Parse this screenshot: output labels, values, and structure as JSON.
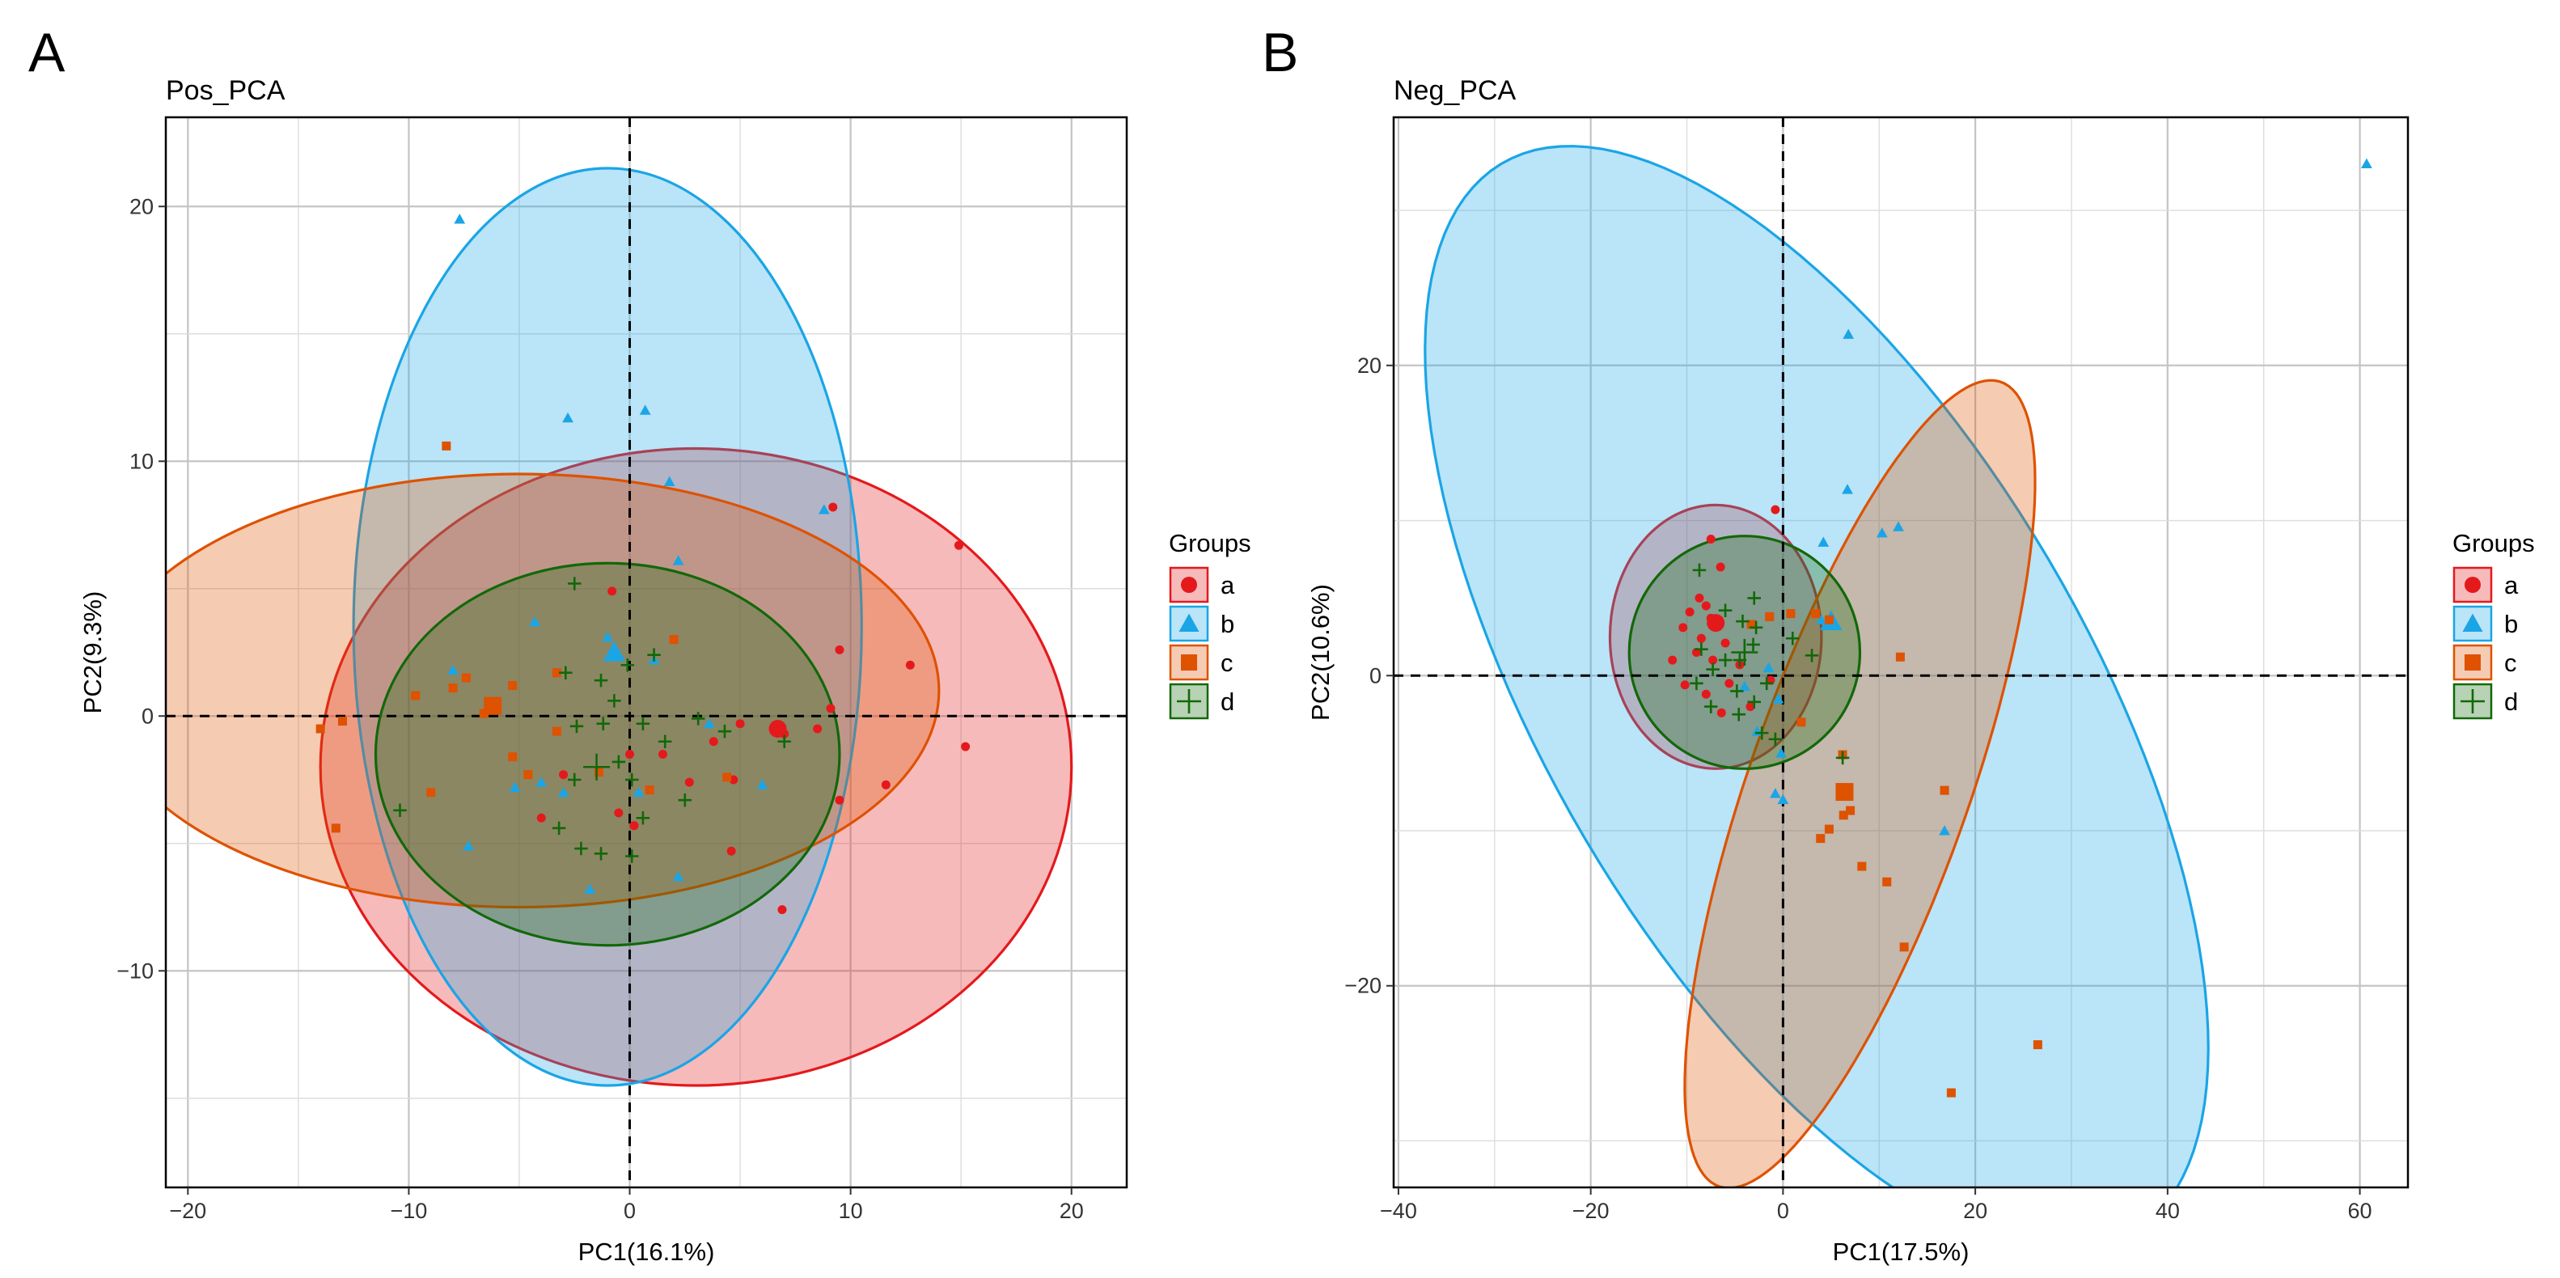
{
  "chart_data": [
    {
      "type": "scatter",
      "panel_letter": "A",
      "title": "Pos_PCA",
      "xlabel": "PC1(16.1%)",
      "ylabel": "PC2(9.3%)",
      "xlim": [
        -21,
        22.5
      ],
      "ylim": [
        -18.5,
        23.5
      ],
      "xticks": [
        -20,
        -10,
        0,
        10,
        20
      ],
      "yticks": [
        -10,
        0,
        10,
        20
      ],
      "grid": true,
      "legend": {
        "title": "Groups",
        "position": "right",
        "entries": [
          "a",
          "b",
          "c",
          "d"
        ]
      },
      "groups": [
        {
          "name": "a",
          "color": "#e4191c",
          "marker": "circle",
          "ellipse": {
            "cx": 3,
            "cy": -2,
            "rx": 17,
            "ry": 12.5,
            "angle": 0
          },
          "centroid": [
            6.7,
            -0.5
          ],
          "points": [
            [
              9.2,
              8.2
            ],
            [
              14.9,
              6.7
            ],
            [
              9.5,
              2.6
            ],
            [
              12.7,
              2.0
            ],
            [
              15.2,
              -1.2
            ],
            [
              9.1,
              0.3
            ],
            [
              8.5,
              -0.5
            ],
            [
              11.6,
              -2.7
            ],
            [
              9.5,
              -3.3
            ],
            [
              7.0,
              -0.7
            ],
            [
              5.0,
              -0.3
            ],
            [
              4.7,
              -2.5
            ],
            [
              3.8,
              -1.0
            ],
            [
              2.7,
              -2.6
            ],
            [
              1.5,
              -1.5
            ],
            [
              0.0,
              -1.5
            ],
            [
              -0.5,
              -3.8
            ],
            [
              -4.0,
              -4.0
            ],
            [
              -3.0,
              -2.3
            ],
            [
              6.9,
              -7.6
            ],
            [
              4.6,
              -5.3
            ],
            [
              0.2,
              -4.3
            ],
            [
              -0.8,
              4.9
            ]
          ]
        },
        {
          "name": "b",
          "color": "#1aa5e6",
          "marker": "triangle",
          "ellipse": {
            "cx": -1,
            "cy": 3.5,
            "rx": 11.5,
            "ry": 18,
            "angle": 0
          },
          "centroid": [
            -0.7,
            2.5
          ],
          "points": [
            [
              -7.7,
              19.5
            ],
            [
              0.7,
              12.0
            ],
            [
              -2.8,
              11.7
            ],
            [
              1.8,
              9.2
            ],
            [
              8.8,
              8.1
            ],
            [
              2.2,
              6.1
            ],
            [
              -4.3,
              3.7
            ],
            [
              -1.0,
              3.1
            ],
            [
              1.1,
              2.2
            ],
            [
              3.6,
              -0.3
            ],
            [
              -4.0,
              -2.6
            ],
            [
              -5.2,
              -2.8
            ],
            [
              6.0,
              -2.7
            ],
            [
              -3.0,
              -3.0
            ],
            [
              -7.3,
              -5.1
            ],
            [
              2.2,
              -6.3
            ],
            [
              -1.8,
              -6.8
            ],
            [
              -8.0,
              1.8
            ],
            [
              0.4,
              -3.0
            ]
          ]
        },
        {
          "name": "c",
          "color": "#de5200",
          "marker": "square",
          "ellipse": {
            "cx": -5,
            "cy": 1,
            "rx": 19,
            "ry": 8.5,
            "angle": 0
          },
          "centroid": [
            -6.2,
            0.4
          ],
          "points": [
            [
              -8.3,
              10.6
            ],
            [
              2.0,
              3.0
            ],
            [
              -5.3,
              1.2
            ],
            [
              -7.4,
              1.5
            ],
            [
              -8.0,
              1.1
            ],
            [
              -3.3,
              1.7
            ],
            [
              -9.7,
              0.8
            ],
            [
              -6.6,
              0.1
            ],
            [
              -13.0,
              -0.2
            ],
            [
              -14.0,
              -0.5
            ],
            [
              -5.3,
              -1.6
            ],
            [
              -4.6,
              -2.3
            ],
            [
              -13.3,
              -4.4
            ],
            [
              -9.0,
              -3.0
            ],
            [
              -1.4,
              -2.2
            ],
            [
              -3.3,
              -0.6
            ],
            [
              4.4,
              -2.4
            ],
            [
              0.9,
              -2.9
            ]
          ]
        },
        {
          "name": "d",
          "color": "#126808",
          "marker": "plus",
          "ellipse": {
            "cx": -1,
            "cy": -1.5,
            "rx": 10.5,
            "ry": 7.5,
            "angle": 0
          },
          "centroid": [
            -1.5,
            -2.0
          ],
          "points": [
            [
              -10.4,
              -3.7
            ],
            [
              -2.5,
              5.2
            ],
            [
              1.1,
              2.4
            ],
            [
              -0.1,
              2.0
            ],
            [
              -2.9,
              1.7
            ],
            [
              -1.3,
              1.4
            ],
            [
              -0.7,
              0.6
            ],
            [
              -1.2,
              -0.3
            ],
            [
              -2.4,
              -0.4
            ],
            [
              0.6,
              -0.3
            ],
            [
              1.6,
              -1.0
            ],
            [
              3.1,
              -0.1
            ],
            [
              4.3,
              -0.6
            ],
            [
              7.0,
              -1.0
            ],
            [
              -2.5,
              -2.5
            ],
            [
              0.1,
              -2.5
            ],
            [
              0.6,
              -4.0
            ],
            [
              -2.2,
              -5.2
            ],
            [
              -1.3,
              -5.4
            ],
            [
              0.1,
              -5.5
            ],
            [
              2.5,
              -3.3
            ],
            [
              -3.2,
              -4.4
            ],
            [
              -0.5,
              -1.8
            ]
          ]
        }
      ]
    },
    {
      "type": "scatter",
      "panel_letter": "B",
      "title": "Neg_PCA",
      "xlabel": "PC1(17.5%)",
      "ylabel": "PC2(10.6%)",
      "xlim": [
        -40.5,
        65
      ],
      "ylim": [
        -33,
        36
      ],
      "xticks": [
        -40,
        -20,
        0,
        20,
        40,
        60
      ],
      "yticks": [
        -20,
        0,
        20
      ],
      "grid": true,
      "legend": {
        "title": "Groups",
        "position": "right",
        "entries": [
          "a",
          "b",
          "c",
          "d"
        ]
      },
      "groups": [
        {
          "name": "a",
          "color": "#e4191c",
          "marker": "circle",
          "ellipse": {
            "cx": -7,
            "cy": 2.5,
            "rx": 11,
            "ry": 8.5,
            "angle": 0
          },
          "centroid": [
            -7,
            3.4
          ],
          "points": [
            [
              -7.5,
              8.8
            ],
            [
              -6.5,
              7.0
            ],
            [
              -8.7,
              5.0
            ],
            [
              -8.0,
              4.5
            ],
            [
              -9.7,
              4.1
            ],
            [
              -7.5,
              3.7
            ],
            [
              -10.4,
              3.1
            ],
            [
              -8.5,
              2.4
            ],
            [
              -6.0,
              2.1
            ],
            [
              -9.0,
              1.5
            ],
            [
              -7.3,
              1.0
            ],
            [
              -11.5,
              1.0
            ],
            [
              -4.5,
              0.7
            ],
            [
              -5.6,
              -0.5
            ],
            [
              -8.0,
              -1.2
            ],
            [
              -10.2,
              -0.6
            ],
            [
              -6.4,
              -2.4
            ],
            [
              -3.4,
              -2.0
            ],
            [
              -1.3,
              -0.3
            ],
            [
              -0.8,
              10.7
            ]
          ]
        },
        {
          "name": "b",
          "color": "#1aa5e6",
          "marker": "triangle",
          "ellipse": {
            "cx": 3.5,
            "cy": -1.5,
            "rx": 49,
            "ry": 23,
            "angle": -39
          },
          "centroid": [
            5,
            3.5
          ],
          "points": [
            [
              60.7,
              33.0
            ],
            [
              6.8,
              22.0
            ],
            [
              6.7,
              12.0
            ],
            [
              10.3,
              9.2
            ],
            [
              12.0,
              9.6
            ],
            [
              4.2,
              8.6
            ],
            [
              4.0,
              3.6
            ],
            [
              -0.2,
              -5.0
            ],
            [
              -0.8,
              -7.6
            ],
            [
              0.0,
              -8.0
            ],
            [
              -2.7,
              -3.6
            ],
            [
              -0.5,
              -1.5
            ],
            [
              -4.0,
              -0.7
            ],
            [
              -1.5,
              0.5
            ],
            [
              16.8,
              -10.0
            ]
          ]
        },
        {
          "name": "c",
          "color": "#de5200",
          "marker": "square",
          "ellipse": {
            "cx": 8,
            "cy": -7,
            "rx": 30,
            "ry": 10.5,
            "angle": 58
          },
          "centroid": [
            6.4,
            -7.5
          ],
          "points": [
            [
              26.5,
              -23.8
            ],
            [
              17.5,
              -26.9
            ],
            [
              12.6,
              -17.5
            ],
            [
              10.8,
              -13.3
            ],
            [
              8.2,
              -12.3
            ],
            [
              16.8,
              -7.4
            ],
            [
              4.8,
              -9.9
            ],
            [
              3.9,
              -10.5
            ],
            [
              6.3,
              -9.0
            ],
            [
              7.0,
              -8.7
            ],
            [
              6.2,
              -5.1
            ],
            [
              12.2,
              1.2
            ],
            [
              4.8,
              3.6
            ],
            [
              3.4,
              4.0
            ],
            [
              0.8,
              4.0
            ],
            [
              -1.4,
              3.8
            ],
            [
              1.9,
              -3.0
            ],
            [
              -3.3,
              3.3
            ]
          ]
        },
        {
          "name": "d",
          "color": "#126808",
          "marker": "plus",
          "ellipse": {
            "cx": -4,
            "cy": 1.5,
            "rx": 12,
            "ry": 7.5,
            "angle": 0
          },
          "centroid": [
            -4,
            1.5
          ],
          "points": [
            [
              -3.0,
              5.0
            ],
            [
              -8.7,
              6.8
            ],
            [
              -4.2,
              3.5
            ],
            [
              -2.8,
              3.1
            ],
            [
              -3.1,
              2.0
            ],
            [
              -4.5,
              1.0
            ],
            [
              -6.0,
              1.0
            ],
            [
              -8.5,
              1.7
            ],
            [
              -7.3,
              0.4
            ],
            [
              -9.0,
              -0.5
            ],
            [
              -4.8,
              -1.0
            ],
            [
              -1.7,
              -0.5
            ],
            [
              -3.0,
              -1.7
            ],
            [
              -4.6,
              -2.5
            ],
            [
              -7.5,
              -2.0
            ],
            [
              -2.2,
              -3.7
            ],
            [
              -0.8,
              -4.1
            ],
            [
              3.0,
              1.3
            ],
            [
              1.0,
              2.4
            ],
            [
              -6.0,
              4.2
            ],
            [
              6.2,
              -5.3
            ]
          ]
        }
      ]
    }
  ]
}
